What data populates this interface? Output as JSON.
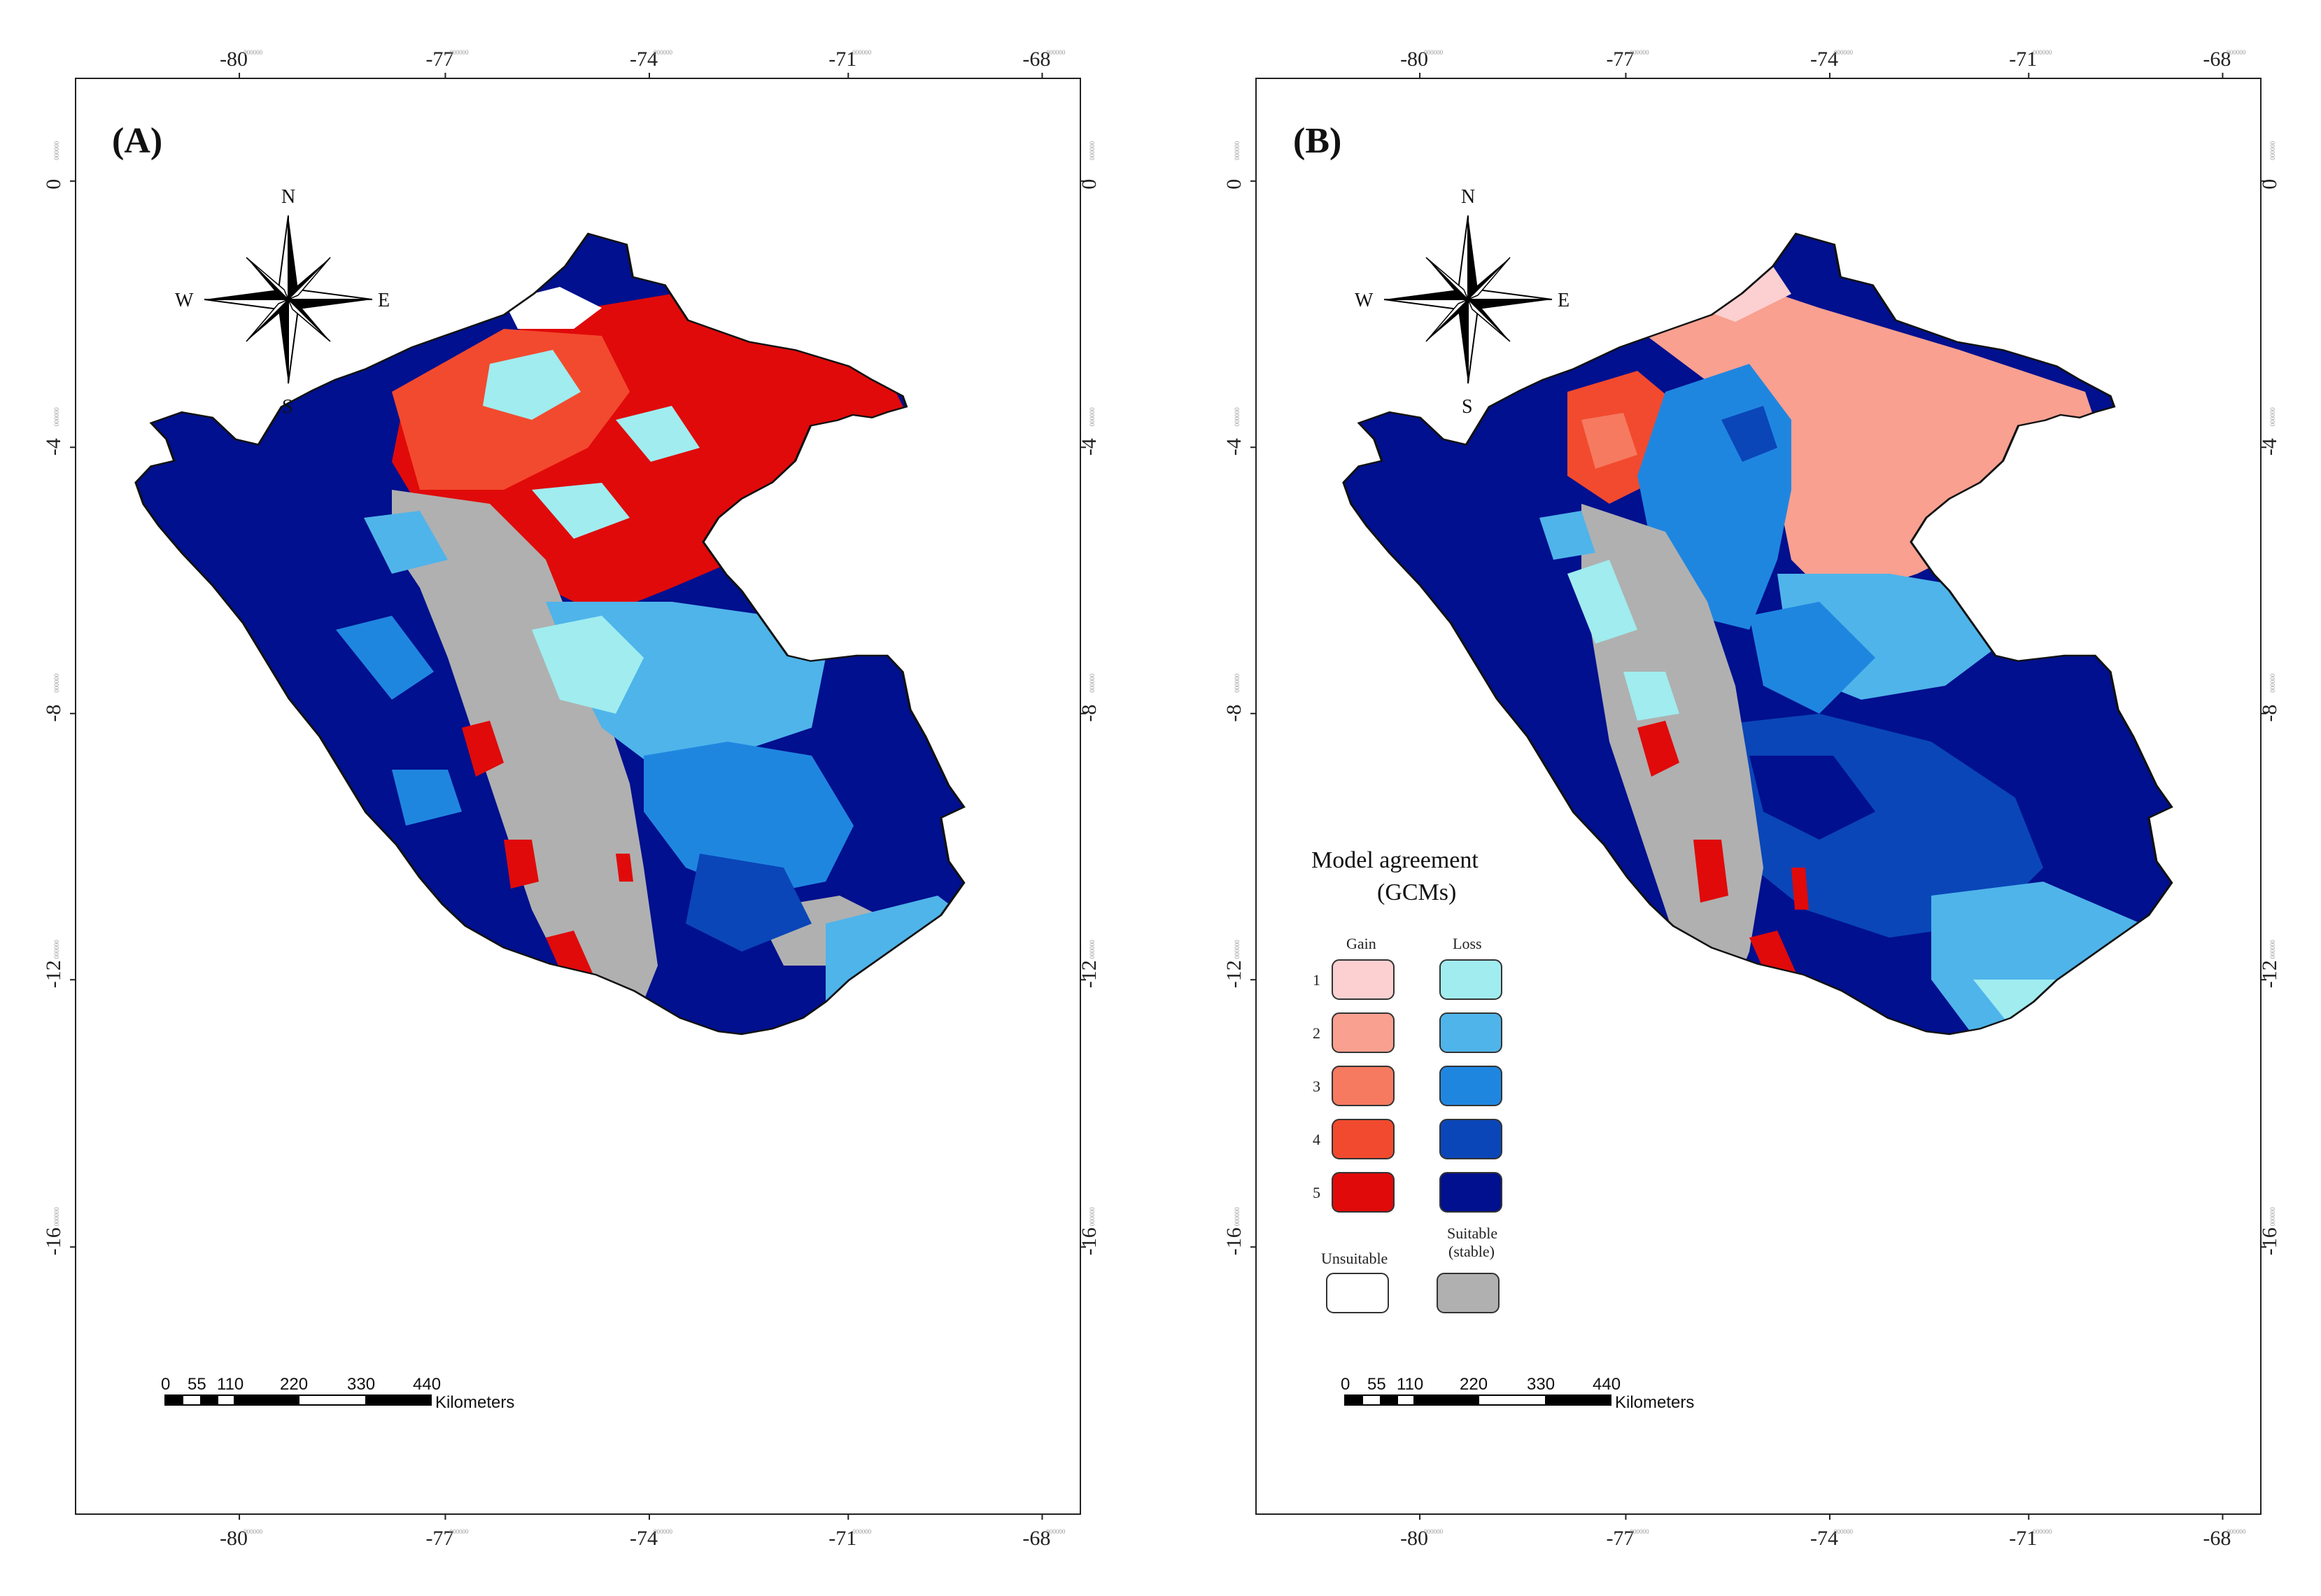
{
  "panels": [
    {
      "label": "(A)"
    },
    {
      "label": "(B)"
    }
  ],
  "axes": {
    "lon_ticks": [
      "-80",
      "-77",
      "-74",
      "-71",
      "-68"
    ],
    "lat_ticks": [
      "0",
      "-4",
      "-8",
      "-12",
      "-16"
    ],
    "tick_superscript": "000000"
  },
  "compass": {
    "n": "N",
    "s": "S",
    "e": "E",
    "w": "W"
  },
  "scalebar": {
    "ticks": [
      "0",
      "55",
      "110",
      "220",
      "330",
      "440"
    ],
    "unit": "Kilometers"
  },
  "legend": {
    "title_line1": "Model agreement",
    "title_line2": "(GCMs)",
    "gain_head": "Gain",
    "loss_head": "Loss",
    "levels": [
      "1",
      "2",
      "3",
      "4",
      "5"
    ],
    "gain_colors": [
      "#fcd0d0",
      "#f9a090",
      "#f57a60",
      "#f24a2e",
      "#e00a0a"
    ],
    "loss_colors": [
      "#a0ecef",
      "#4fb4ea",
      "#1f86e0",
      "#0a46b8",
      "#00108e"
    ],
    "unsuitable_label": "Unsuitable",
    "suitable_line1": "Suitable",
    "suitable_line2": "(stable)",
    "unsuitable_color": "#ffffff",
    "suitable_color": "#b0b0b0"
  }
}
